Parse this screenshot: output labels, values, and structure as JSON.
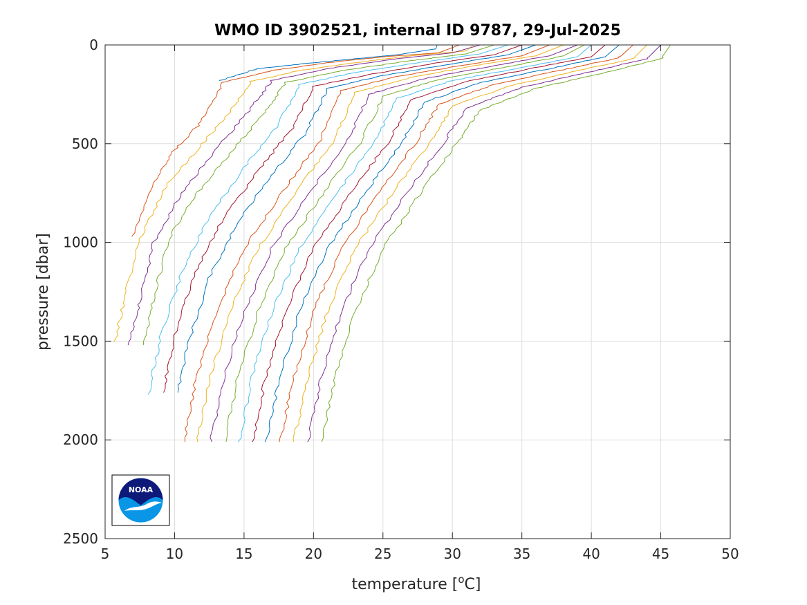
{
  "chart_data": {
    "type": "line",
    "title": "WMO ID 3902521, internal ID 9787, 29-Jul-2025",
    "xlabel_prefix": "temperature [",
    "xlabel_sup": "o",
    "xlabel_suffix": "C]",
    "ylabel": "pressure [dbar]",
    "xlim": [
      5,
      50
    ],
    "ylim": [
      0,
      2500
    ],
    "y_reversed": true,
    "grid": true,
    "xticks": [
      "5",
      "10",
      "15",
      "20",
      "25",
      "30",
      "35",
      "40",
      "45",
      "50"
    ],
    "yticks": [
      "0",
      "500",
      "1000",
      "1500",
      "2000",
      "2500"
    ],
    "logo": "NOAA",
    "colors": [
      "#0072BD",
      "#D95319",
      "#EDB120",
      "#7E2F8E",
      "#77AC30",
      "#4DBEEE",
      "#A2142F"
    ],
    "series": [
      {
        "color_index": 0,
        "points": [
          [
            13.3,
            180
          ],
          [
            16,
            120
          ],
          [
            20,
            90
          ],
          [
            23,
            70
          ],
          [
            26,
            50
          ],
          [
            28.8,
            20
          ],
          [
            28.9,
            0
          ]
        ]
      },
      {
        "color_index": 1,
        "points": [
          [
            7.0,
            970
          ],
          [
            8.5,
            700
          ],
          [
            10,
            530
          ],
          [
            11.8,
            400
          ],
          [
            13.5,
            190
          ],
          [
            17,
            130
          ],
          [
            21,
            90
          ],
          [
            25,
            60
          ],
          [
            29,
            40
          ],
          [
            30.5,
            0
          ]
        ]
      },
      {
        "color_index": 2,
        "points": [
          [
            5.7,
            1505
          ],
          [
            6.5,
            1250
          ],
          [
            7.5,
            980
          ],
          [
            9.5,
            700
          ],
          [
            12,
            500
          ],
          [
            14,
            340
          ],
          [
            15.5,
            185
          ],
          [
            19,
            130
          ],
          [
            23,
            90
          ],
          [
            27,
            55
          ],
          [
            31,
            30
          ],
          [
            31.5,
            0
          ]
        ]
      },
      {
        "color_index": 3,
        "points": [
          [
            6.7,
            1520
          ],
          [
            7.5,
            1300
          ],
          [
            8.5,
            1000
          ],
          [
            10.5,
            750
          ],
          [
            13,
            530
          ],
          [
            15.5,
            320
          ],
          [
            17,
            180
          ],
          [
            21,
            120
          ],
          [
            26,
            70
          ],
          [
            30,
            40
          ],
          [
            32,
            0
          ]
        ]
      },
      {
        "color_index": 4,
        "points": [
          [
            7.8,
            1520
          ],
          [
            8.5,
            1280
          ],
          [
            9.6,
            980
          ],
          [
            11.5,
            760
          ],
          [
            14,
            550
          ],
          [
            16.5,
            340
          ],
          [
            18,
            190
          ],
          [
            22,
            130
          ],
          [
            27,
            80
          ],
          [
            31,
            45
          ],
          [
            33,
            0
          ]
        ]
      },
      {
        "color_index": 5,
        "points": [
          [
            8.1,
            1770
          ],
          [
            9,
            1480
          ],
          [
            10.5,
            1150
          ],
          [
            12.5,
            870
          ],
          [
            15,
            620
          ],
          [
            17.5,
            400
          ],
          [
            19,
            200
          ],
          [
            23,
            140
          ],
          [
            28,
            85
          ],
          [
            32,
            45
          ],
          [
            34,
            0
          ]
        ]
      },
      {
        "color_index": 6,
        "points": [
          [
            9.2,
            1760
          ],
          [
            10,
            1470
          ],
          [
            11.5,
            1150
          ],
          [
            13.5,
            880
          ],
          [
            16,
            640
          ],
          [
            18.5,
            420
          ],
          [
            20,
            210
          ],
          [
            24,
            150
          ],
          [
            29,
            90
          ],
          [
            33,
            50
          ],
          [
            35,
            0
          ]
        ]
      },
      {
        "color_index": 0,
        "points": [
          [
            10.2,
            1760
          ],
          [
            11,
            1500
          ],
          [
            12.5,
            1180
          ],
          [
            14.5,
            900
          ],
          [
            17,
            660
          ],
          [
            19.5,
            440
          ],
          [
            21,
            220
          ],
          [
            25,
            155
          ],
          [
            30,
            95
          ],
          [
            34,
            50
          ],
          [
            36,
            0
          ]
        ]
      },
      {
        "color_index": 1,
        "points": [
          [
            10.7,
            2010
          ],
          [
            11.5,
            1700
          ],
          [
            13,
            1350
          ],
          [
            15,
            1030
          ],
          [
            17.8,
            740
          ],
          [
            20.5,
            480
          ],
          [
            22,
            230
          ],
          [
            26,
            160
          ],
          [
            31,
            100
          ],
          [
            35,
            55
          ],
          [
            37,
            0
          ]
        ]
      },
      {
        "color_index": 2,
        "points": [
          [
            11.6,
            2010
          ],
          [
            12.5,
            1700
          ],
          [
            14,
            1350
          ],
          [
            16,
            1030
          ],
          [
            18.8,
            740
          ],
          [
            21.5,
            480
          ],
          [
            23,
            240
          ],
          [
            27,
            165
          ],
          [
            32,
            100
          ],
          [
            36,
            55
          ],
          [
            38,
            0
          ]
        ]
      },
      {
        "color_index": 3,
        "points": [
          [
            12.6,
            2010
          ],
          [
            13.5,
            1700
          ],
          [
            15,
            1350
          ],
          [
            17,
            1030
          ],
          [
            19.8,
            740
          ],
          [
            22.5,
            480
          ],
          [
            24,
            250
          ],
          [
            28,
            170
          ],
          [
            33,
            105
          ],
          [
            37,
            55
          ],
          [
            39,
            0
          ]
        ]
      },
      {
        "color_index": 4,
        "points": [
          [
            13.6,
            2010
          ],
          [
            14.5,
            1700
          ],
          [
            16,
            1350
          ],
          [
            18,
            1030
          ],
          [
            20.8,
            740
          ],
          [
            23.5,
            480
          ],
          [
            25,
            260
          ],
          [
            29,
            175
          ],
          [
            34,
            110
          ],
          [
            38,
            55
          ],
          [
            39.5,
            0
          ]
        ]
      },
      {
        "color_index": 5,
        "points": [
          [
            14.7,
            2010
          ],
          [
            15.5,
            1700
          ],
          [
            17,
            1350
          ],
          [
            19,
            1030
          ],
          [
            21.8,
            740
          ],
          [
            24.5,
            480
          ],
          [
            26,
            270
          ],
          [
            30,
            180
          ],
          [
            35,
            115
          ],
          [
            39,
            60
          ],
          [
            40,
            0
          ]
        ]
      },
      {
        "color_index": 6,
        "points": [
          [
            15.7,
            2010
          ],
          [
            16.5,
            1700
          ],
          [
            18,
            1350
          ],
          [
            20,
            1030
          ],
          [
            22.8,
            740
          ],
          [
            25.5,
            480
          ],
          [
            27,
            280
          ],
          [
            31,
            185
          ],
          [
            36,
            115
          ],
          [
            40,
            60
          ],
          [
            41,
            0
          ]
        ]
      },
      {
        "color_index": 0,
        "points": [
          [
            16.6,
            2010
          ],
          [
            17.5,
            1700
          ],
          [
            19,
            1350
          ],
          [
            21,
            1030
          ],
          [
            23.8,
            740
          ],
          [
            26.5,
            480
          ],
          [
            28,
            290
          ],
          [
            32,
            190
          ],
          [
            37,
            120
          ],
          [
            41,
            60
          ],
          [
            42,
            0
          ]
        ]
      },
      {
        "color_index": 1,
        "points": [
          [
            17.6,
            2010
          ],
          [
            18.5,
            1700
          ],
          [
            20,
            1350
          ],
          [
            22,
            1030
          ],
          [
            24.8,
            740
          ],
          [
            27.5,
            480
          ],
          [
            29,
            300
          ],
          [
            33,
            200
          ],
          [
            38,
            125
          ],
          [
            42,
            65
          ],
          [
            43,
            0
          ]
        ]
      },
      {
        "color_index": 2,
        "points": [
          [
            18.6,
            2010
          ],
          [
            19.5,
            1700
          ],
          [
            21,
            1350
          ],
          [
            23,
            1030
          ],
          [
            25.8,
            740
          ],
          [
            28.5,
            480
          ],
          [
            30,
            310
          ],
          [
            34,
            210
          ],
          [
            39,
            130
          ],
          [
            43,
            70
          ],
          [
            44,
            0
          ]
        ]
      },
      {
        "color_index": 3,
        "points": [
          [
            19.6,
            2010
          ],
          [
            20.5,
            1700
          ],
          [
            22,
            1350
          ],
          [
            24,
            1030
          ],
          [
            26.8,
            740
          ],
          [
            29.5,
            480
          ],
          [
            31,
            320
          ],
          [
            35,
            215
          ],
          [
            40,
            135
          ],
          [
            44,
            70
          ],
          [
            45,
            0
          ]
        ]
      },
      {
        "color_index": 4,
        "points": [
          [
            20.6,
            2010
          ],
          [
            21.5,
            1700
          ],
          [
            23,
            1350
          ],
          [
            25,
            1030
          ],
          [
            27.8,
            740
          ],
          [
            30.5,
            480
          ],
          [
            32,
            330
          ],
          [
            36,
            220
          ],
          [
            41,
            140
          ],
          [
            45,
            70
          ],
          [
            45.7,
            0
          ]
        ]
      }
    ]
  }
}
